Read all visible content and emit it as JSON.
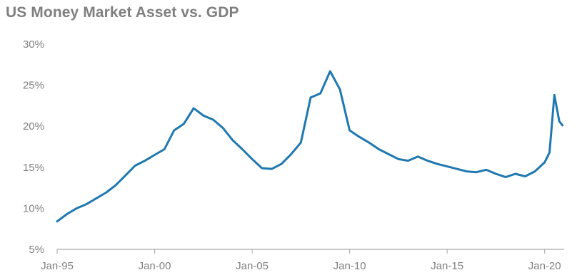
{
  "chart_data": {
    "type": "line",
    "title": "US Money Market Asset vs. GDP",
    "xlabel": "",
    "ylabel": "",
    "ylim": [
      5,
      30
    ],
    "y_ticks": [
      "5%",
      "10%",
      "15%",
      "20%",
      "25%",
      "30%"
    ],
    "y_tick_values": [
      5,
      10,
      15,
      20,
      25,
      30
    ],
    "x_ticks": [
      "Jan-95",
      "Jan-00",
      "Jan-05",
      "Jan-10",
      "Jan-15",
      "Jan-20"
    ],
    "x_tick_values": [
      "1995-01",
      "2000-01",
      "2005-01",
      "2010-01",
      "2015-01",
      "2020-01"
    ],
    "xlim": [
      "1995-01",
      "2020-12"
    ],
    "grid": false,
    "legend": "none",
    "colors": {
      "line": "#1f78b0",
      "axis": "#a6a6a6",
      "text": "#808080",
      "title": "#7f7f7f"
    },
    "series": [
      {
        "x": [
          "1995-01",
          "1995-07",
          "1996-01",
          "1996-07",
          "1997-01",
          "1997-07",
          "1998-01",
          "1998-07",
          "1999-01",
          "1999-07",
          "2000-01",
          "2000-07",
          "2001-01",
          "2001-07",
          "2002-01",
          "2002-07",
          "2003-01",
          "2003-07",
          "2004-01",
          "2004-07",
          "2005-01",
          "2005-07",
          "2006-01",
          "2006-07",
          "2007-01",
          "2007-07",
          "2008-01",
          "2008-07",
          "2009-01",
          "2009-07",
          "2010-01",
          "2010-07",
          "2011-01",
          "2011-07",
          "2012-01",
          "2012-07",
          "2013-01",
          "2013-07",
          "2014-01",
          "2014-07",
          "2015-01",
          "2015-07",
          "2016-01",
          "2016-07",
          "2017-01",
          "2017-07",
          "2018-01",
          "2018-07",
          "2019-01",
          "2019-07",
          "2020-01",
          "2020-04",
          "2020-07",
          "2020-10",
          "2020-12"
        ],
        "values": [
          8.4,
          9.3,
          10.0,
          10.5,
          11.2,
          11.9,
          12.8,
          14.0,
          15.2,
          15.8,
          16.5,
          17.2,
          19.5,
          20.3,
          22.2,
          21.3,
          20.8,
          19.8,
          18.3,
          17.2,
          16.0,
          14.9,
          14.8,
          15.4,
          16.6,
          18.0,
          23.5,
          24.0,
          26.7,
          24.5,
          19.5,
          18.7,
          18.0,
          17.2,
          16.6,
          16.0,
          15.8,
          16.3,
          15.8,
          15.4,
          15.1,
          14.8,
          14.5,
          14.4,
          14.7,
          14.2,
          13.8,
          14.2,
          13.9,
          14.5,
          15.6,
          16.8,
          23.8,
          20.6,
          20.1
        ]
      }
    ]
  }
}
